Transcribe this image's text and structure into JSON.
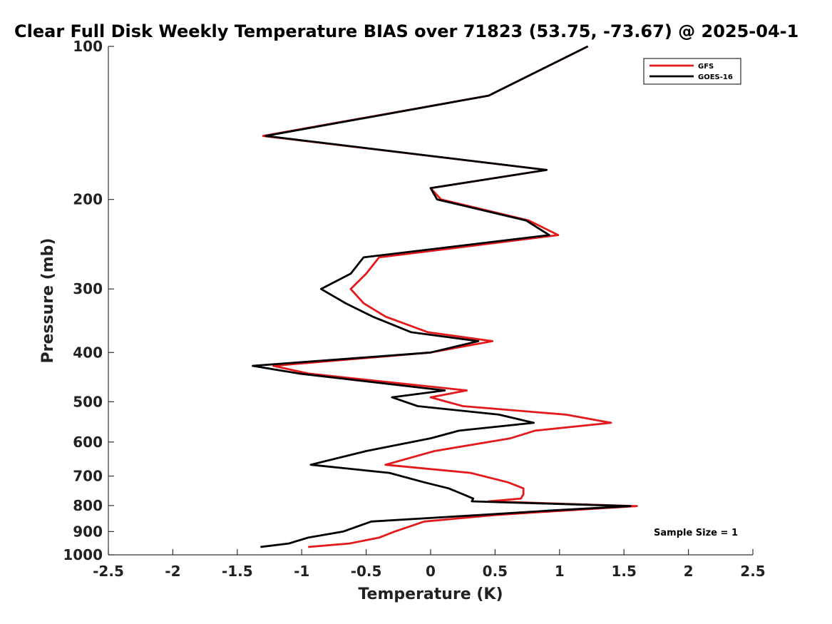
{
  "chart_data": {
    "type": "line",
    "title": "Clear Full Disk Weekly Temperature BIAS over 71823 (53.75, -73.67) @ 2025-04-1",
    "xlabel": "Temperature (K)",
    "ylabel": "Pressure (mb)",
    "xlim": [
      -2.5,
      2.5
    ],
    "ylim": [
      1000,
      100
    ],
    "y_scale": "log",
    "x_ticks": [
      "-2.5",
      "-2",
      "-1.5",
      "-1",
      "-0.5",
      "0",
      "0.5",
      "1",
      "1.5",
      "2",
      "2.5"
    ],
    "y_ticks": [
      "100",
      "200",
      "300",
      "400",
      "500",
      "600",
      "700",
      "800",
      "900",
      "1000"
    ],
    "legend_position": "top-right",
    "grid": false,
    "annotation": "Sample Size = 1",
    "series": [
      {
        "name": "GFS",
        "color": "#e31a1c",
        "points": [
          [
            1.22,
            100
          ],
          [
            0.45,
            125
          ],
          [
            -1.3,
            150
          ],
          [
            0.9,
            175
          ],
          [
            0.0,
            190
          ],
          [
            0.08,
            200
          ],
          [
            0.76,
            220
          ],
          [
            0.99,
            235
          ],
          [
            -0.4,
            260
          ],
          [
            -0.5,
            280
          ],
          [
            -0.62,
            300
          ],
          [
            -0.52,
            320
          ],
          [
            -0.35,
            340
          ],
          [
            -0.02,
            365
          ],
          [
            0.48,
            380
          ],
          [
            0.0,
            400
          ],
          [
            -1.22,
            425
          ],
          [
            -0.95,
            440
          ],
          [
            0.28,
            475
          ],
          [
            0.0,
            490
          ],
          [
            0.25,
            510
          ],
          [
            1.05,
            530
          ],
          [
            1.4,
            550
          ],
          [
            0.81,
            570
          ],
          [
            0.62,
            590
          ],
          [
            0.03,
            625
          ],
          [
            -0.35,
            665
          ],
          [
            0.31,
            690
          ],
          [
            0.6,
            720
          ],
          [
            0.72,
            740
          ],
          [
            0.72,
            760
          ],
          [
            0.7,
            775
          ],
          [
            0.45,
            785
          ],
          [
            1.6,
            802
          ],
          [
            1.05,
            818
          ],
          [
            0.5,
            835
          ],
          [
            -0.05,
            860
          ],
          [
            -0.28,
            900
          ],
          [
            -0.4,
            925
          ],
          [
            -0.63,
            950
          ],
          [
            -0.95,
            965
          ]
        ]
      },
      {
        "name": "GOES-16",
        "color": "#000000",
        "points": [
          [
            1.22,
            100
          ],
          [
            0.45,
            125
          ],
          [
            -1.28,
            150
          ],
          [
            0.9,
            175
          ],
          [
            0.0,
            190
          ],
          [
            0.05,
            200
          ],
          [
            0.74,
            220
          ],
          [
            0.92,
            235
          ],
          [
            -0.52,
            260
          ],
          [
            -0.62,
            280
          ],
          [
            -0.85,
            300
          ],
          [
            -0.66,
            320
          ],
          [
            -0.45,
            340
          ],
          [
            -0.15,
            365
          ],
          [
            0.37,
            380
          ],
          [
            0.0,
            400
          ],
          [
            -1.38,
            425
          ],
          [
            -1.02,
            440
          ],
          [
            0.11,
            475
          ],
          [
            -0.3,
            490
          ],
          [
            -0.1,
            510
          ],
          [
            0.53,
            530
          ],
          [
            0.8,
            550
          ],
          [
            0.22,
            570
          ],
          [
            0.0,
            590
          ],
          [
            -0.5,
            625
          ],
          [
            -0.93,
            665
          ],
          [
            -0.32,
            690
          ],
          [
            -0.05,
            720
          ],
          [
            0.14,
            740
          ],
          [
            0.25,
            760
          ],
          [
            0.33,
            775
          ],
          [
            0.32,
            785
          ],
          [
            1.55,
            802
          ],
          [
            0.94,
            818
          ],
          [
            0.38,
            835
          ],
          [
            -0.46,
            860
          ],
          [
            -0.68,
            900
          ],
          [
            -0.95,
            925
          ],
          [
            -1.1,
            950
          ],
          [
            -1.32,
            965
          ]
        ]
      }
    ]
  }
}
